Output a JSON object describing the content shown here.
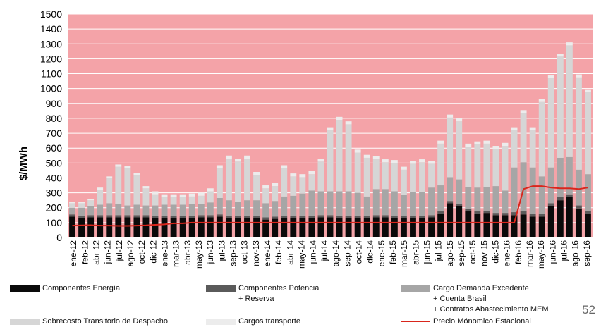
{
  "page_number": "52",
  "colors": {
    "plot_bg": "#F4A3A8",
    "energia": "#0a0a0a",
    "potencia": "#5a5a5a",
    "demanda": "#a6a6a6",
    "sobrecosto": "#d6d6d6",
    "transporte": "#ececec",
    "precio": "#d9261c",
    "grid": "#ffffff"
  },
  "chart_data": {
    "type": "bar",
    "stacked": true,
    "ylabel": "$/MWh",
    "xlabel": "",
    "ylim": [
      0,
      1500
    ],
    "yticks": [
      0,
      100,
      200,
      300,
      400,
      500,
      600,
      700,
      800,
      900,
      1000,
      1100,
      1200,
      1300,
      1400,
      1500
    ],
    "grid": true,
    "legend_position": "bottom",
    "categories": [
      "ene-12",
      "feb-12",
      "mar-12",
      "abr-12",
      "may-12",
      "jun-12",
      "jul-12",
      "ago-12",
      "sep-12",
      "oct-12",
      "nov-12",
      "dic-12",
      "ene-13",
      "feb-13",
      "mar-13",
      "abr-13",
      "may-13",
      "jun-13",
      "jul-13",
      "ago-13",
      "sep-13",
      "oct-13",
      "nov-13",
      "dic-13",
      "ene-14",
      "feb-14",
      "mar-14",
      "abr-14",
      "may-14",
      "jun-14",
      "jul-14",
      "ago-14",
      "sep-14",
      "oct-14",
      "nov-14",
      "dic-14",
      "ene-15",
      "feb-15",
      "mar-15",
      "abr-15",
      "may-15",
      "jun-15",
      "jul-15",
      "ago-15",
      "sep-15",
      "oct-15",
      "nov-15",
      "dic-15",
      "ene-16",
      "feb-16",
      "mar-16",
      "abr-16",
      "may-16",
      "jun-16",
      "jul-16",
      "ago-16",
      "sep-16"
    ],
    "tick_labels": [
      "ene-12",
      "feb-12",
      "abr-12",
      "jun-12",
      "jul-12",
      "ago-12",
      "oct-12",
      "dic-12",
      "ene-13",
      "mar-13",
      "abr-13",
      "may-13",
      "jun-13",
      "jul-13",
      "sep-13",
      "oct-13",
      "nov-13",
      "ene-14",
      "feb-14",
      "abr-14",
      "may-14",
      "jun-14",
      "jul-14",
      "ago-14",
      "sep-14",
      "oct-14",
      "dic-14",
      "ene-15",
      "feb-15",
      "mar-15",
      "abr-15",
      "jun-15",
      "jul-15",
      "ago-15",
      "sep-15",
      "oct-15",
      "nov-15",
      "dic-15",
      "ene-16",
      "feb-16",
      "mar-16",
      "may-16",
      "jun-16",
      "jul-16",
      "ago-16",
      "sep-16"
    ],
    "series": [
      {
        "name": "Componentes Energía",
        "values": [
          140,
          130,
          135,
          135,
          135,
          135,
          135,
          135,
          135,
          130,
          130,
          130,
          130,
          130,
          135,
          135,
          140,
          130,
          130,
          130,
          130,
          120,
          125,
          130,
          130,
          130,
          130,
          135,
          135,
          130,
          130,
          130,
          130,
          135,
          135,
          130,
          130,
          130,
          130,
          135,
          160,
          230,
          210,
          175,
          160,
          165,
          150,
          150,
          150,
          155,
          140,
          140,
          210,
          250,
          270,
          195,
          160
        ]
      },
      {
        "name": "Componentes Potencia + Reserva",
        "values": [
          15,
          15,
          15,
          15,
          15,
          15,
          15,
          15,
          15,
          15,
          15,
          15,
          15,
          15,
          15,
          15,
          15,
          15,
          15,
          15,
          15,
          15,
          15,
          15,
          15,
          15,
          15,
          15,
          15,
          15,
          15,
          15,
          15,
          15,
          15,
          15,
          15,
          15,
          15,
          15,
          15,
          15,
          15,
          15,
          15,
          15,
          15,
          15,
          20,
          20,
          20,
          20,
          20,
          20,
          20,
          20,
          20
        ]
      },
      {
        "name": "Cargo Demanda Excedente + Cuenta Brasil + Contratos Abastecimiento MEM",
        "values": [
          45,
          55,
          60,
          70,
          80,
          75,
          65,
          70,
          65,
          70,
          75,
          75,
          75,
          80,
          75,
          85,
          110,
          105,
          95,
          105,
          105,
          95,
          105,
          130,
          135,
          150,
          170,
          160,
          160,
          165,
          165,
          155,
          130,
          175,
          175,
          165,
          140,
          160,
          160,
          185,
          175,
          160,
          165,
          150,
          160,
          160,
          180,
          150,
          300,
          330,
          310,
          250,
          240,
          265,
          250,
          240,
          245
        ]
      },
      {
        "name": "Sobrecosto Transitorio de Despacho",
        "values": [
          30,
          30,
          40,
          100,
          170,
          250,
          250,
          200,
          115,
          75,
          50,
          50,
          50,
          50,
          55,
          75,
          200,
          280,
          270,
          280,
          170,
          100,
          100,
          190,
          130,
          110,
          110,
          200,
          410,
          480,
          450,
          270,
          260,
          200,
          180,
          190,
          170,
          190,
          200,
          160,
          280,
          400,
          390,
          270,
          290,
          290,
          250,
          300,
          250,
          330,
          250,
          500,
          600,
          680,
          750,
          620,
          550
        ]
      },
      {
        "name": "Cargos transporte",
        "values": [
          10,
          10,
          10,
          15,
          10,
          15,
          15,
          15,
          15,
          20,
          20,
          20,
          20,
          20,
          20,
          20,
          20,
          20,
          20,
          20,
          20,
          20,
          20,
          20,
          20,
          20,
          20,
          20,
          20,
          20,
          20,
          20,
          20,
          20,
          20,
          20,
          20,
          20,
          20,
          20,
          20,
          20,
          20,
          20,
          20,
          20,
          20,
          20,
          20,
          20,
          20,
          20,
          20,
          20,
          20,
          20,
          20
        ]
      },
      {
        "name": "Precio Mónomico Estacional",
        "type": "line",
        "values": [
          80,
          82,
          83,
          80,
          80,
          78,
          78,
          80,
          82,
          85,
          88,
          95,
          95,
          100,
          100,
          100,
          100,
          100,
          100,
          100,
          100,
          100,
          100,
          100,
          100,
          100,
          100,
          100,
          100,
          100,
          100,
          100,
          100,
          100,
          100,
          100,
          100,
          100,
          100,
          100,
          100,
          100,
          100,
          100,
          100,
          100,
          100,
          100,
          100,
          325,
          345,
          345,
          335,
          330,
          330,
          325,
          335
        ]
      }
    ]
  },
  "legend": [
    {
      "key": "energia",
      "lines": [
        "Componentes Energía"
      ]
    },
    {
      "key": "potencia",
      "lines": [
        "Componentes Potencia",
        "+ Reserva"
      ]
    },
    {
      "key": "demanda",
      "lines": [
        "Cargo Demanda Excedente",
        "+ Cuenta Brasil",
        "+ Contratos Abastecimiento MEM"
      ]
    },
    {
      "key": "sobrecosto",
      "lines": [
        "Sobrecosto Transitorio de Despacho"
      ]
    },
    {
      "key": "transporte",
      "lines": [
        "Cargos transporte"
      ]
    },
    {
      "key": "precio",
      "lines": [
        "Precio Mónomico Estacional"
      ]
    }
  ]
}
